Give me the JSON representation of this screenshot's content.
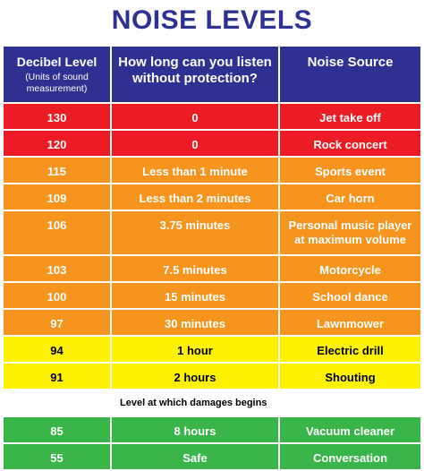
{
  "title": "NOISE LEVELS",
  "headers": {
    "decibel": "Decibel Level",
    "decibel_sub": "(Units of sound measurement)",
    "duration": "How long can you listen without protection?",
    "source": "Noise Source"
  },
  "rows": [
    {
      "db": "130",
      "duration": "0",
      "source": "Jet take off",
      "color": "#ed1c24"
    },
    {
      "db": "120",
      "duration": "0",
      "source": "Rock concert",
      "color": "#ed1c24"
    },
    {
      "db": "115",
      "duration": "Less than 1 minute",
      "source": "Sports event",
      "color": "#f7941d"
    },
    {
      "db": "109",
      "duration": "Less than 2 minutes",
      "source": "Car horn",
      "color": "#f7941d"
    },
    {
      "db": "106",
      "duration": "3.75 minutes",
      "source": "Personal music player at maximum volume",
      "color": "#f7941d"
    },
    {
      "db": "103",
      "duration": "7.5 minutes",
      "source": "Motorcycle",
      "color": "#f7941d"
    },
    {
      "db": "100",
      "duration": "15 minutes",
      "source": "School dance",
      "color": "#f7941d"
    },
    {
      "db": "97",
      "duration": "30 minutes",
      "source": "Lawnmower",
      "color": "#f7941d"
    },
    {
      "db": "94",
      "duration": "1 hour",
      "source": "Electric drill",
      "color": "#fff200"
    },
    {
      "db": "91",
      "duration": "2 hours",
      "source": "Shouting",
      "color": "#fff200"
    }
  ],
  "note": "Level at which damages begins",
  "safe_rows": [
    {
      "db": "85",
      "duration": "8 hours",
      "source": "Vacuum cleaner",
      "color": "#39b54a"
    },
    {
      "db": "55",
      "duration": "Safe",
      "source": "Conversation",
      "color": "#39b54a"
    }
  ]
}
